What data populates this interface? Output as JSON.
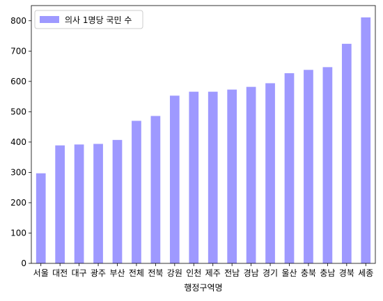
{
  "chart_data": {
    "type": "bar",
    "title": "",
    "xlabel": "행정구역명",
    "ylabel": "",
    "categories": [
      "서울",
      "대전",
      "대구",
      "광주",
      "부산",
      "전체",
      "전북",
      "강원",
      "인천",
      "제주",
      "전남",
      "경남",
      "경기",
      "울산",
      "충북",
      "충남",
      "경북",
      "세종"
    ],
    "series": [
      {
        "name": "의사 1명당 국민 수",
        "color": "#9e99ff",
        "values": [
          297,
          389,
          392,
          394,
          407,
          470,
          486,
          553,
          566,
          566,
          573,
          582,
          594,
          627,
          638,
          647,
          724,
          811
        ]
      }
    ],
    "ylim": [
      0,
      850
    ],
    "yticks": [
      0,
      100,
      200,
      300,
      400,
      500,
      600,
      700,
      800
    ],
    "grid": false,
    "legend_position": "top-left"
  }
}
